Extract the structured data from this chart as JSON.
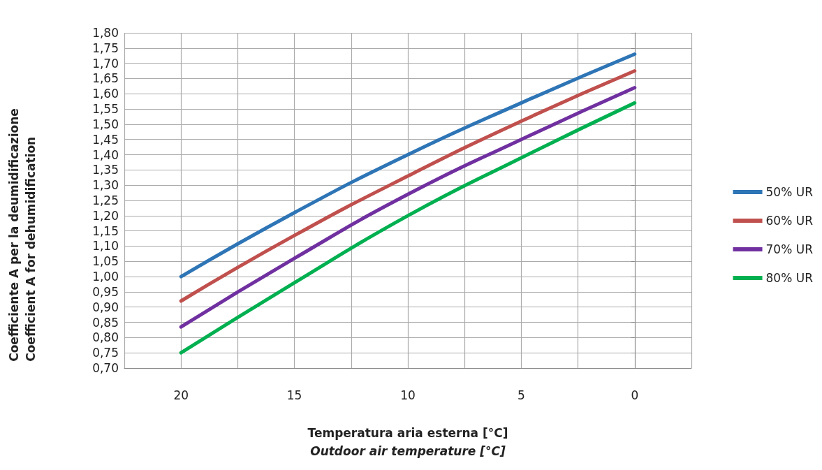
{
  "chart_data": {
    "type": "line",
    "xlabel": "Temperatura aria esterna [°C]\nOutdoor air temperature [°C]",
    "ylabel": "Coefficiente A per la deumidificazione\nCoefficient A for dehumidification",
    "x": [
      20,
      15,
      10,
      5,
      0
    ],
    "xlim": [
      22.5,
      -2.5
    ],
    "xticks": [
      {
        "value": 22.5,
        "label": null
      },
      20,
      {
        "value": 17.5,
        "label": null
      },
      15,
      {
        "value": 12.5,
        "label": null
      },
      10,
      {
        "value": 7.5,
        "label": null
      },
      5,
      {
        "value": 2.5,
        "label": null
      },
      0,
      {
        "value": -2.5,
        "label": null
      }
    ],
    "ylim": [
      0.7,
      1.8
    ],
    "yticks": [
      {
        "value": 0.7,
        "label": "0,70"
      },
      {
        "value": 0.75,
        "label": "0,75"
      },
      {
        "value": 0.8,
        "label": "0,80"
      },
      {
        "value": 0.85,
        "label": "0,85"
      },
      {
        "value": 0.9,
        "label": "0,90"
      },
      {
        "value": 0.95,
        "label": "0,95"
      },
      {
        "value": 1.0,
        "label": "1,00"
      },
      {
        "value": 1.05,
        "label": "1,05"
      },
      {
        "value": 1.1,
        "label": "1,10"
      },
      {
        "value": 1.15,
        "label": "1,15"
      },
      {
        "value": 1.2,
        "label": "1,20"
      },
      {
        "value": 1.25,
        "label": "1,25"
      },
      {
        "value": 1.3,
        "label": "1,30"
      },
      {
        "value": 1.35,
        "label": "1,35"
      },
      {
        "value": 1.4,
        "label": "1,40"
      },
      {
        "value": 1.45,
        "label": "1,45"
      },
      {
        "value": 1.5,
        "label": "1,50"
      },
      {
        "value": 1.55,
        "label": "1,55"
      },
      {
        "value": 1.6,
        "label": "1,60"
      },
      {
        "value": 1.65,
        "label": "1,65"
      },
      {
        "value": 1.7,
        "label": "1,70"
      },
      {
        "value": 1.75,
        "label": "1,75"
      },
      {
        "value": 1.8,
        "label": "1,80"
      }
    ],
    "series": [
      {
        "name": "50% UR",
        "color": "#2e75b6",
        "values": [
          1.0,
          1.21,
          1.4,
          1.57,
          1.73
        ]
      },
      {
        "name": "60% UR",
        "color": "#c0504d",
        "values": [
          0.92,
          1.135,
          1.33,
          1.51,
          1.675
        ]
      },
      {
        "name": "70% UR",
        "color": "#7030a0",
        "values": [
          0.835,
          1.06,
          1.27,
          1.45,
          1.62
        ]
      },
      {
        "name": "80% UR",
        "color": "#00b050",
        "values": [
          0.75,
          0.98,
          1.2,
          1.39,
          1.57
        ]
      }
    ],
    "grid": true,
    "legend": "right",
    "marker": "none",
    "line_style": "solid"
  }
}
